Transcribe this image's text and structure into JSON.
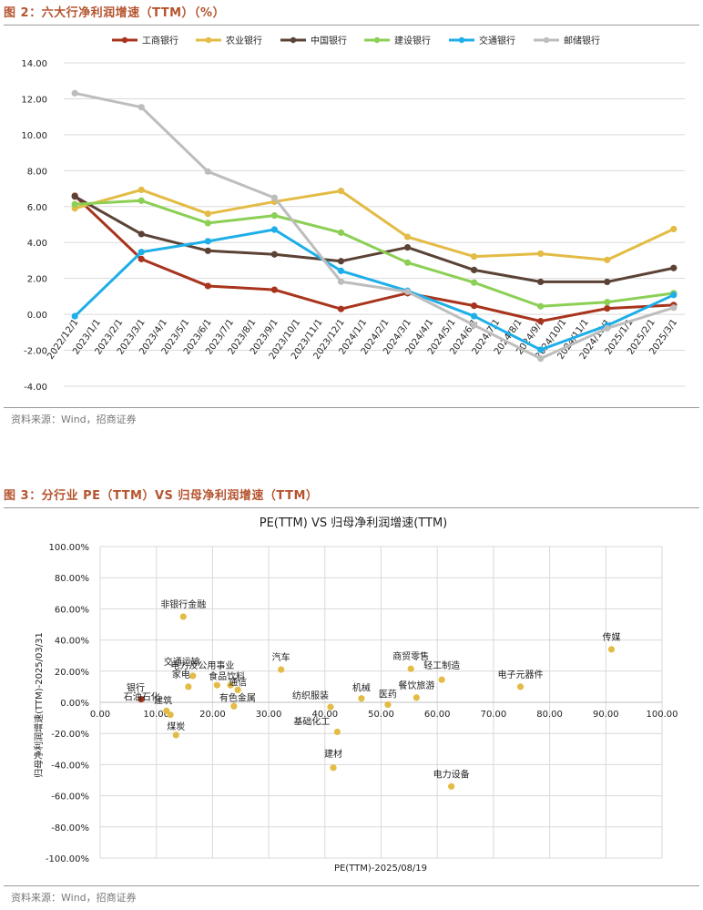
{
  "figure2": {
    "title": "图 2：六大行净利润增速（TTM）（%）",
    "source": "资料来源：Wind，招商证券"
  },
  "figure3": {
    "title": "图 3：分行业 PE（TTM）VS 归母净利润增速（TTM）",
    "source": "资料来源：Wind，招商证券"
  },
  "chart_data": [
    {
      "type": "line",
      "title": "",
      "xlabel": "",
      "ylabel": "",
      "ylim": [
        -4,
        14
      ],
      "yticks": [
        "-4.00",
        "-2.00",
        "0.00",
        "2.00",
        "4.00",
        "6.00",
        "8.00",
        "10.00",
        "12.00",
        "14.00"
      ],
      "categories": [
        "2022/12/1",
        "2023/1/1",
        "2023/2/1",
        "2023/3/1",
        "2023/4/1",
        "2023/5/1",
        "2023/6/1",
        "2023/7/1",
        "2023/8/1",
        "2023/9/1",
        "2023/10/1",
        "2023/11/1",
        "2023/12/1",
        "2024/1/1",
        "2024/2/1",
        "2024/3/1",
        "2024/4/1",
        "2024/5/1",
        "2024/6/1",
        "2024/7/1",
        "2024/8/1",
        "2024/9/1",
        "2024/10/1",
        "2024/11/1",
        "2024/12/1",
        "2025/1/1",
        "2025/2/1",
        "2025/3/1"
      ],
      "legend_position": "top",
      "series": [
        {
          "name": "工商银行",
          "color": "#a8341d",
          "points": [
            [
              0,
              6.6
            ],
            [
              3,
              3.08
            ],
            [
              6,
              1.58
            ],
            [
              9,
              1.37
            ],
            [
              12,
              0.3
            ],
            [
              15,
              1.18
            ],
            [
              18,
              0.48
            ],
            [
              21,
              -0.38
            ],
            [
              24,
              0.33
            ],
            [
              27,
              0.52
            ]
          ]
        },
        {
          "name": "农业银行",
          "color": "#e3bb45",
          "points": [
            [
              0,
              5.9
            ],
            [
              3,
              6.93
            ],
            [
              6,
              5.6
            ],
            [
              9,
              6.27
            ],
            [
              12,
              6.87
            ],
            [
              15,
              4.31
            ],
            [
              18,
              3.22
            ],
            [
              21,
              3.38
            ],
            [
              24,
              3.03
            ],
            [
              27,
              4.75
            ]
          ]
        },
        {
          "name": "中国银行",
          "color": "#5b4235",
          "points": [
            [
              0,
              6.56
            ],
            [
              3,
              4.47
            ],
            [
              6,
              3.54
            ],
            [
              9,
              3.34
            ],
            [
              12,
              2.96
            ],
            [
              15,
              3.73
            ],
            [
              18,
              2.47
            ],
            [
              21,
              1.81
            ],
            [
              24,
              1.81
            ],
            [
              27,
              2.58
            ]
          ]
        },
        {
          "name": "建设银行",
          "color": "#8ccf55",
          "points": [
            [
              0,
              6.13
            ],
            [
              3,
              6.33
            ],
            [
              6,
              5.08
            ],
            [
              9,
              5.5
            ],
            [
              12,
              4.55
            ],
            [
              15,
              2.88
            ],
            [
              18,
              1.77
            ],
            [
              21,
              0.45
            ],
            [
              24,
              0.68
            ],
            [
              27,
              1.18
            ]
          ]
        },
        {
          "name": "交通银行",
          "color": "#1eaee8",
          "points": [
            [
              0,
              -0.1
            ],
            [
              3,
              3.47
            ],
            [
              6,
              4.07
            ],
            [
              9,
              4.72
            ],
            [
              12,
              2.42
            ],
            [
              15,
              1.31
            ],
            [
              18,
              -0.1
            ],
            [
              21,
              -1.97
            ],
            [
              24,
              -0.62
            ],
            [
              27,
              1.08
            ]
          ]
        },
        {
          "name": "邮储银行",
          "color": "#bdbdbd",
          "points": [
            [
              0,
              12.31
            ],
            [
              3,
              11.53
            ],
            [
              6,
              7.95
            ],
            [
              9,
              6.49
            ],
            [
              12,
              1.82
            ],
            [
              15,
              1.26
            ],
            [
              18,
              -0.6
            ],
            [
              21,
              -2.46
            ],
            [
              24,
              -0.78
            ],
            [
              27,
              0.37
            ]
          ]
        }
      ]
    },
    {
      "type": "scatter",
      "title": "PE(TTM) VS 归母净利润增速(TTM)",
      "xlabel": "PE(TTM)-2025/08/19",
      "ylabel": "归母净利润增速(TTM)-2025/03/31",
      "xlim": [
        0,
        100
      ],
      "ylim": [
        -100,
        100
      ],
      "xticks": [
        "0.00",
        "10.00",
        "20.00",
        "30.00",
        "40.00",
        "50.00",
        "60.00",
        "70.00",
        "80.00",
        "90.00",
        "100.00"
      ],
      "yticks": [
        "-100.00%",
        "-80.00%",
        "-60.00%",
        "-40.00%",
        "-20.00%",
        "0.00%",
        "20.00%",
        "40.00%",
        "60.00%",
        "80.00%",
        "100.00%"
      ],
      "points": [
        {
          "label": "银行",
          "x": 7.3,
          "y": 2.0,
          "color": "#a8341d"
        },
        {
          "label": "非银行金融",
          "x": 14.8,
          "y": 55.0,
          "color": "#e3bb45"
        },
        {
          "label": "电力及公用事业",
          "x": 20.8,
          "y": 11.0,
          "color": "#e3bb45"
        },
        {
          "label": "交通运输",
          "x": 16.5,
          "y": 17.0,
          "color": "#e3bb45"
        },
        {
          "label": "家电",
          "x": 15.7,
          "y": 10.0,
          "color": "#e3bb45"
        },
        {
          "label": "食品饮料",
          "x": 23.2,
          "y": 11.0,
          "color": "#e3bb45"
        },
        {
          "label": "通信",
          "x": 24.5,
          "y": 8.0,
          "color": "#e3bb45"
        },
        {
          "label": "石油石化",
          "x": 11.8,
          "y": -5.5,
          "color": "#e3bb45"
        },
        {
          "label": "建筑",
          "x": 12.5,
          "y": -8.0,
          "color": "#e3bb45"
        },
        {
          "label": "煤炭",
          "x": 13.5,
          "y": -21.0,
          "color": "#e3bb45"
        },
        {
          "label": "有色金属",
          "x": 23.8,
          "y": -2.5,
          "color": "#e3bb45"
        },
        {
          "label": "汽车",
          "x": 32.2,
          "y": 21.0,
          "color": "#e3bb45"
        },
        {
          "label": "纺织服装",
          "x": 41.0,
          "y": -3.0,
          "color": "#e3bb45"
        },
        {
          "label": "基础化工",
          "x": 42.2,
          "y": -19.0,
          "color": "#e3bb45"
        },
        {
          "label": "建材",
          "x": 41.5,
          "y": -42.0,
          "color": "#e3bb45"
        },
        {
          "label": "机械",
          "x": 46.5,
          "y": 2.5,
          "color": "#e3bb45"
        },
        {
          "label": "医药",
          "x": 51.2,
          "y": -1.5,
          "color": "#e3bb45"
        },
        {
          "label": "商贸零售",
          "x": 55.3,
          "y": 21.5,
          "color": "#e3bb45"
        },
        {
          "label": "轻工制造",
          "x": 60.8,
          "y": 14.5,
          "color": "#e3bb45"
        },
        {
          "label": "餐饮旅游",
          "x": 56.3,
          "y": 3.0,
          "color": "#e3bb45"
        },
        {
          "label": "电力设备",
          "x": 62.5,
          "y": -54.0,
          "color": "#e3bb45"
        },
        {
          "label": "电子元器件",
          "x": 74.8,
          "y": 10.0,
          "color": "#e3bb45"
        },
        {
          "label": "传媒",
          "x": 91.0,
          "y": 34.0,
          "color": "#e3bb45"
        }
      ]
    }
  ]
}
